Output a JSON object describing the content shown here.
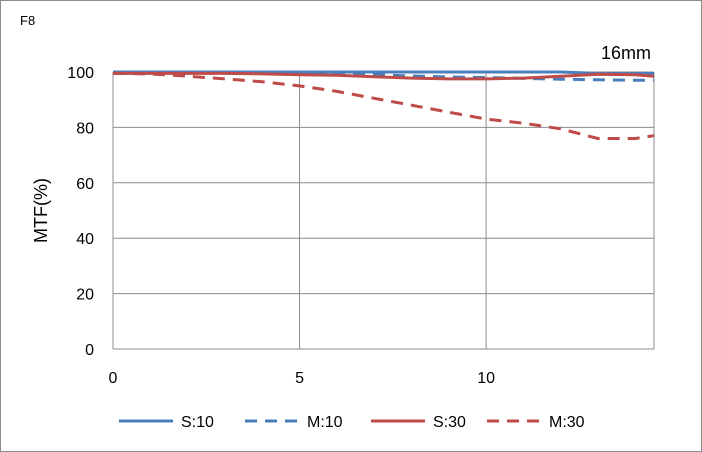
{
  "panel_label": "F8",
  "chart_data": {
    "type": "line",
    "title": "",
    "subtitle": "16mm",
    "xlabel": "",
    "ylabel": "MTF(%)",
    "xlim": [
      0,
      14.5
    ],
    "ylim": [
      0,
      100
    ],
    "xticks": [
      0,
      5,
      10
    ],
    "yticks": [
      0,
      20,
      40,
      60,
      80,
      100
    ],
    "grid": true,
    "legend_position": "bottom",
    "series": [
      {
        "name": "S:10",
        "color": "#4a7ebb",
        "dash": "solid",
        "x": [
          0,
          1,
          2,
          3,
          4,
          5,
          6,
          7,
          8,
          9,
          10,
          11,
          12,
          13,
          14,
          14.5
        ],
        "values": [
          100,
          100,
          100,
          100,
          100,
          100,
          100,
          100,
          100,
          100,
          100,
          100,
          100,
          99.5,
          99.5,
          99.5
        ]
      },
      {
        "name": "M:10",
        "color": "#4a7ebb",
        "dash": "dashed",
        "x": [
          0,
          1,
          2,
          3,
          4,
          5,
          6,
          7,
          8,
          9,
          10,
          11,
          12,
          13,
          14,
          14.5
        ],
        "values": [
          99.8,
          99.8,
          99.8,
          99.7,
          99.6,
          99.5,
          99.3,
          99,
          98.6,
          98.2,
          98,
          97.7,
          97.4,
          97.2,
          97,
          97
        ]
      },
      {
        "name": "S:30",
        "color": "#be4b48",
        "dash": "solid",
        "x": [
          0,
          1,
          2,
          3,
          4,
          5,
          6,
          7,
          8,
          9,
          10,
          11,
          12,
          13,
          14,
          14.5
        ],
        "values": [
          99.5,
          99.5,
          99.5,
          99.5,
          99.3,
          99,
          98.8,
          98.3,
          97.8,
          97.5,
          97.5,
          97.8,
          98.5,
          99.2,
          99,
          98.5
        ]
      },
      {
        "name": "M:30",
        "color": "#be4b48",
        "dash": "dashed",
        "x": [
          0,
          1,
          2,
          3,
          4,
          5,
          6,
          7,
          8,
          9,
          10,
          11,
          12,
          13,
          14,
          14.5
        ],
        "values": [
          99.5,
          99.3,
          98.5,
          97.5,
          96.5,
          95,
          93,
          90.5,
          88,
          85.5,
          83,
          81.5,
          79.5,
          76,
          76,
          77
        ]
      }
    ]
  }
}
